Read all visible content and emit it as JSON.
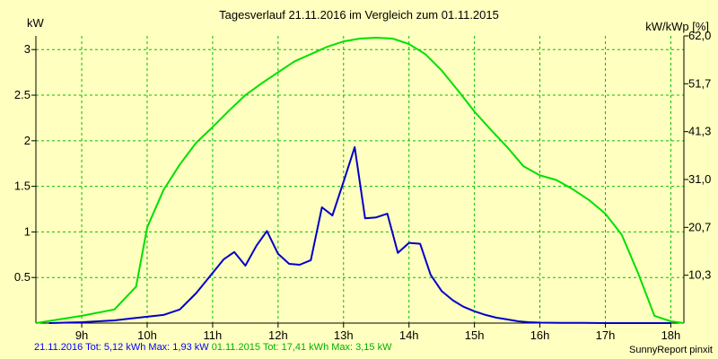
{
  "chart_data": {
    "type": "line",
    "title": "Tagesverlauf 21.11.2016 im Vergleich zum 01.11.2015",
    "ylabel": "kW",
    "ylabel_right": "kW/kWp [%]",
    "xlim": [
      8.3,
      18.2
    ],
    "ylim": [
      0,
      3.15
    ],
    "x_ticks": [
      9,
      10,
      11,
      12,
      13,
      14,
      15,
      16,
      17,
      18
    ],
    "x_tick_labels": [
      "9h",
      "10h",
      "11h",
      "12h",
      "13h",
      "14h",
      "15h",
      "16h",
      "17h",
      "18h"
    ],
    "y_ticks": [
      0.5,
      1,
      1.5,
      2,
      2.5,
      3
    ],
    "y_tick_labels": [
      "0.5",
      "1",
      "1.5",
      "2",
      "2.5",
      "3"
    ],
    "y2_ticks": [
      0.525,
      1.05,
      1.575,
      2.1,
      2.625,
      3.15
    ],
    "y2_tick_labels": [
      "10,3",
      "20,7",
      "31,0",
      "41,3",
      "51,7",
      "62,0"
    ],
    "grid": true,
    "series": [
      {
        "name": "21.11.2016",
        "color": "#0000c8",
        "x": [
          8.5,
          9.0,
          9.5,
          9.75,
          10.0,
          10.25,
          10.5,
          10.75,
          11.0,
          11.17,
          11.33,
          11.5,
          11.67,
          11.83,
          12.0,
          12.17,
          12.33,
          12.5,
          12.67,
          12.83,
          13.0,
          13.17,
          13.33,
          13.5,
          13.67,
          13.83,
          14.0,
          14.17,
          14.33,
          14.5,
          14.67,
          14.83,
          15.0,
          15.17,
          15.33,
          15.5,
          15.67,
          15.83,
          16.0,
          16.33,
          16.67,
          17.0,
          17.5,
          18.0
        ],
        "values": [
          0.0,
          0.01,
          0.03,
          0.05,
          0.07,
          0.09,
          0.15,
          0.33,
          0.55,
          0.7,
          0.78,
          0.63,
          0.85,
          1.01,
          0.76,
          0.65,
          0.64,
          0.69,
          1.27,
          1.18,
          1.55,
          1.93,
          1.15,
          1.16,
          1.2,
          0.77,
          0.88,
          0.87,
          0.53,
          0.35,
          0.25,
          0.18,
          0.13,
          0.09,
          0.06,
          0.04,
          0.02,
          0.01,
          0.005,
          0.003,
          0.002,
          0.0,
          0.0,
          0.0
        ]
      },
      {
        "name": "01.11.2015",
        "color": "#00e000",
        "x": [
          8.3,
          9.0,
          9.5,
          9.83,
          10.0,
          10.25,
          10.5,
          10.75,
          11.0,
          11.25,
          11.5,
          11.75,
          12.0,
          12.25,
          12.5,
          12.75,
          13.0,
          13.25,
          13.5,
          13.75,
          14.0,
          14.25,
          14.5,
          14.75,
          15.0,
          15.25,
          15.5,
          15.75,
          16.0,
          16.25,
          16.5,
          16.75,
          17.0,
          17.25,
          17.5,
          17.75,
          18.0,
          18.2
        ],
        "values": [
          0.0,
          0.08,
          0.15,
          0.4,
          1.05,
          1.46,
          1.74,
          1.98,
          2.15,
          2.33,
          2.5,
          2.63,
          2.75,
          2.87,
          2.95,
          3.03,
          3.09,
          3.12,
          3.13,
          3.12,
          3.06,
          2.95,
          2.77,
          2.55,
          2.32,
          2.12,
          1.93,
          1.72,
          1.62,
          1.57,
          1.47,
          1.35,
          1.2,
          0.97,
          0.55,
          0.08,
          0.02,
          0.0
        ]
      }
    ]
  },
  "footer": {
    "series1": "21.11.2016 Tot: 5,12 kWh Max: 1,93 kW",
    "series2": "01.11.2015 Tot: 17,41 kWh Max: 3,15 kW"
  },
  "credit": "SunnyReport pinxit",
  "colors": {
    "background": "#ffffc0",
    "grid": "#00c000",
    "axis": "#000000"
  }
}
